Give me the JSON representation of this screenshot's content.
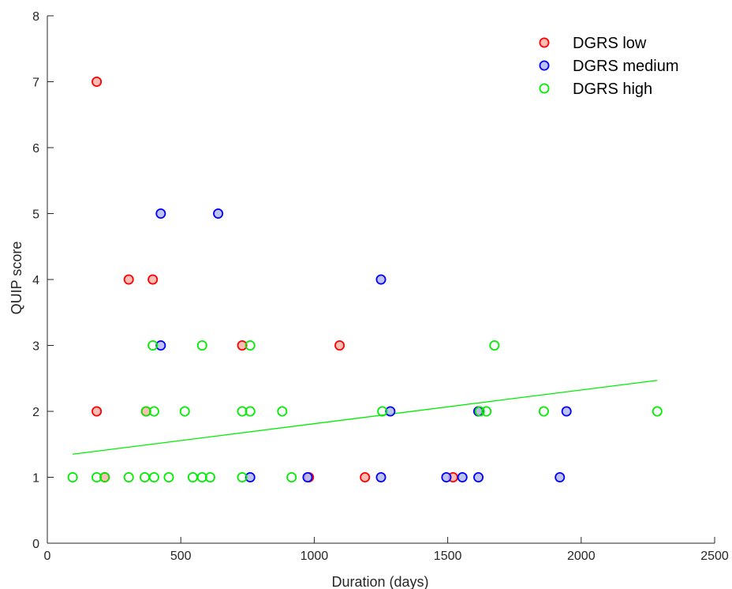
{
  "chart_data": {
    "type": "scatter",
    "xlabel": "Duration (days)",
    "ylabel": "QUIP score",
    "xlim": [
      0,
      2500
    ],
    "ylim": [
      0,
      8
    ],
    "xticks": [
      0,
      500,
      1000,
      1500,
      2000,
      2500
    ],
    "yticks": [
      0,
      1,
      2,
      3,
      4,
      5,
      6,
      7,
      8
    ],
    "grid": false,
    "legend_position": "top-right",
    "series": [
      {
        "name": "DGRS low",
        "color": "#ff0000",
        "fill": "#ffb3a8",
        "points": [
          {
            "x": 185,
            "y": 7
          },
          {
            "x": 185,
            "y": 2
          },
          {
            "x": 215,
            "y": 1
          },
          {
            "x": 305,
            "y": 4
          },
          {
            "x": 395,
            "y": 4
          },
          {
            "x": 370,
            "y": 2
          },
          {
            "x": 730,
            "y": 3
          },
          {
            "x": 1095,
            "y": 3
          },
          {
            "x": 980,
            "y": 1
          },
          {
            "x": 1190,
            "y": 1
          },
          {
            "x": 1520,
            "y": 1
          },
          {
            "x": 1615,
            "y": 2
          }
        ]
      },
      {
        "name": "DGRS medium",
        "color": "#0000ff",
        "fill": "#b3b8f0",
        "points": [
          {
            "x": 425,
            "y": 5
          },
          {
            "x": 640,
            "y": 5
          },
          {
            "x": 425,
            "y": 3
          },
          {
            "x": 1250,
            "y": 4
          },
          {
            "x": 1285,
            "y": 2
          },
          {
            "x": 1615,
            "y": 2
          },
          {
            "x": 1945,
            "y": 2
          },
          {
            "x": 760,
            "y": 1
          },
          {
            "x": 975,
            "y": 1
          },
          {
            "x": 1250,
            "y": 1
          },
          {
            "x": 1495,
            "y": 1
          },
          {
            "x": 1555,
            "y": 1
          },
          {
            "x": 1615,
            "y": 1
          },
          {
            "x": 1920,
            "y": 1
          }
        ]
      },
      {
        "name": "DGRS high",
        "color": "#00ee00",
        "fill": "none",
        "points": [
          {
            "x": 95,
            "y": 1
          },
          {
            "x": 185,
            "y": 1
          },
          {
            "x": 215,
            "y": 1
          },
          {
            "x": 305,
            "y": 1
          },
          {
            "x": 365,
            "y": 1
          },
          {
            "x": 400,
            "y": 1
          },
          {
            "x": 455,
            "y": 1
          },
          {
            "x": 545,
            "y": 1
          },
          {
            "x": 580,
            "y": 1
          },
          {
            "x": 610,
            "y": 1
          },
          {
            "x": 730,
            "y": 1
          },
          {
            "x": 915,
            "y": 1
          },
          {
            "x": 370,
            "y": 2
          },
          {
            "x": 400,
            "y": 2
          },
          {
            "x": 515,
            "y": 2
          },
          {
            "x": 730,
            "y": 2
          },
          {
            "x": 760,
            "y": 2
          },
          {
            "x": 880,
            "y": 2
          },
          {
            "x": 1255,
            "y": 2
          },
          {
            "x": 1620,
            "y": 2
          },
          {
            "x": 1645,
            "y": 2
          },
          {
            "x": 1860,
            "y": 2
          },
          {
            "x": 2285,
            "y": 2
          },
          {
            "x": 395,
            "y": 3
          },
          {
            "x": 580,
            "y": 3
          },
          {
            "x": 760,
            "y": 3
          },
          {
            "x": 1675,
            "y": 3
          }
        ]
      }
    ],
    "fit_line": {
      "series": "DGRS high",
      "color": "#00ee00",
      "x": [
        95,
        2285
      ],
      "y": [
        1.35,
        2.47
      ]
    }
  }
}
